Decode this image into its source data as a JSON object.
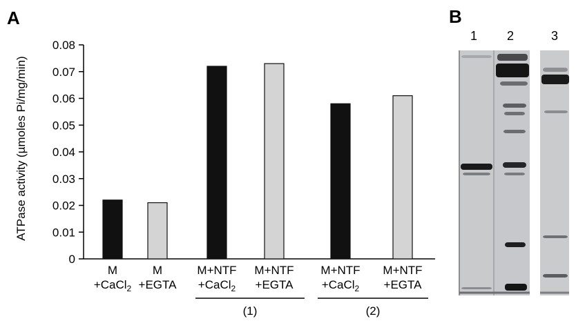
{
  "panels": {
    "a_label": "A",
    "b_label": "B"
  },
  "chart_data": {
    "type": "bar",
    "ylabel": "ATPase activity (µmoles Pi/mg/min)",
    "ylim": [
      0,
      0.08
    ],
    "yticks": [
      "0",
      "0.01",
      "0.02",
      "0.03",
      "0.04",
      "0.05",
      "0.06",
      "0.07",
      "0.08"
    ],
    "categories": [
      {
        "line1": "M",
        "line2_base": "+CaCl",
        "line2_sub": "2"
      },
      {
        "line1": "M",
        "line2_base": "+EGTA",
        "line2_sub": ""
      },
      {
        "line1": "M+NTF",
        "line2_base": "+CaCl",
        "line2_sub": "2"
      },
      {
        "line1": "M+NTF",
        "line2_base": "+EGTA",
        "line2_sub": ""
      },
      {
        "line1": "M+NTF",
        "line2_base": "+CaCl",
        "line2_sub": "2"
      },
      {
        "line1": "M+NTF",
        "line2_base": "+EGTA",
        "line2_sub": ""
      }
    ],
    "values": [
      0.022,
      0.021,
      0.072,
      0.073,
      0.058,
      0.061
    ],
    "bar_colors": [
      "#111111",
      "#d4d4d4",
      "#111111",
      "#d4d4d4",
      "#111111",
      "#d4d4d4"
    ],
    "groups": [
      {
        "label": "(1)",
        "categories": [
          2,
          3
        ]
      },
      {
        "label": "(2)",
        "categories": [
          4,
          5
        ]
      }
    ],
    "grid": false
  },
  "gel": {
    "lane_labels": [
      "1",
      "2",
      "3"
    ],
    "lane_colors": [
      "#c8cacc",
      "#c6c8cb",
      "#c9cbcd"
    ]
  }
}
